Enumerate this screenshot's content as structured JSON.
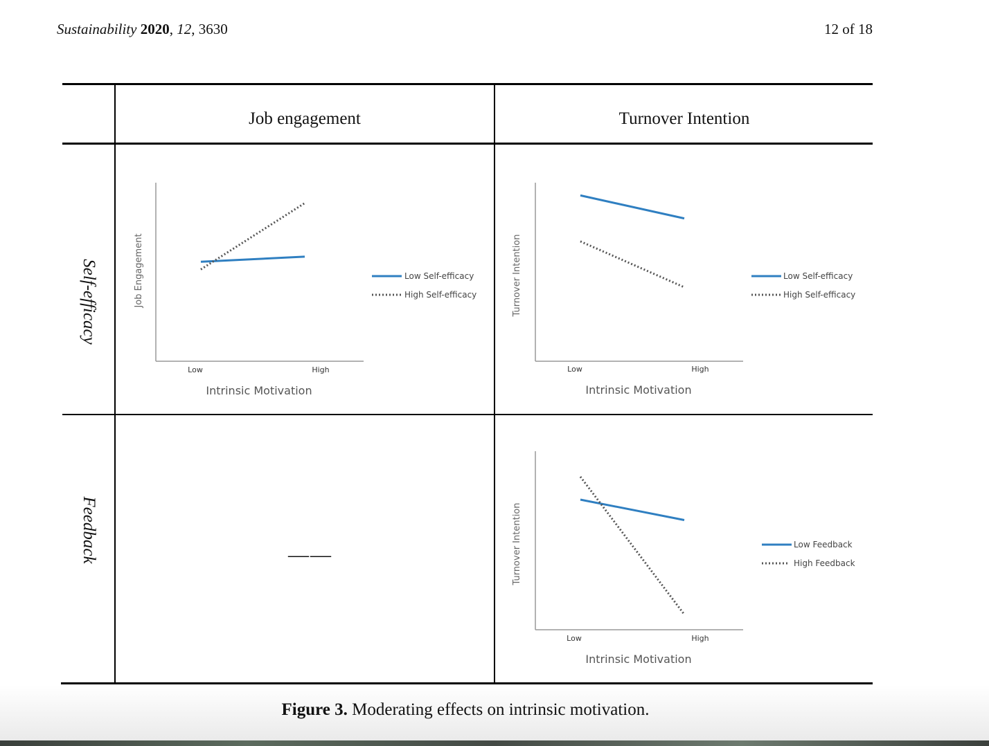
{
  "header": {
    "journal": "Sustainability",
    "year": "2020",
    "volume": "12",
    "article": "3630",
    "page": "12 of 18"
  },
  "table": {
    "columns": [
      "Job engagement",
      "Turnover Intention"
    ],
    "rows": [
      "Self-efficacy",
      "Feedback"
    ],
    "empty_cell": "——"
  },
  "chart_data": [
    {
      "type": "line",
      "x": [
        "Low",
        "High"
      ],
      "xlabel": "Intrinsic Motivation",
      "ylabel": "Job Engagement",
      "series": [
        {
          "name": "Low Self-efficacy",
          "values": [
            3.9,
            4.1
          ],
          "style": "solid",
          "color": "#2f7fc1"
        },
        {
          "name": "High Self-efficacy",
          "values": [
            3.6,
            6.2
          ],
          "style": "dotted",
          "color": "#555555"
        }
      ],
      "ylim": [
        0,
        7
      ]
    },
    {
      "type": "line",
      "x": [
        "Low",
        "High"
      ],
      "xlabel": "Intrinsic Motivation",
      "ylabel": "Turnover Intention",
      "series": [
        {
          "name": "Low Self-efficacy",
          "values": [
            6.5,
            5.6
          ],
          "style": "solid",
          "color": "#2f7fc1"
        },
        {
          "name": "High Self-efficacy",
          "values": [
            4.7,
            2.9
          ],
          "style": "dotted",
          "color": "#555555"
        }
      ],
      "ylim": [
        0,
        7
      ]
    },
    {
      "type": "line",
      "x": [
        "Low",
        "High"
      ],
      "xlabel": "Intrinsic Motivation",
      "ylabel": "Turnover Intention",
      "series": [
        {
          "name": "Low Feedback",
          "values": [
            5.1,
            4.3
          ],
          "style": "solid",
          "color": "#2f7fc1"
        },
        {
          "name": "High Feedback",
          "values": [
            6.0,
            0.6
          ],
          "style": "dotted",
          "color": "#555555"
        }
      ],
      "ylim": [
        0,
        7
      ]
    }
  ],
  "caption": {
    "label": "Figure 3.",
    "text": "Moderating effects on intrinsic motivation."
  }
}
